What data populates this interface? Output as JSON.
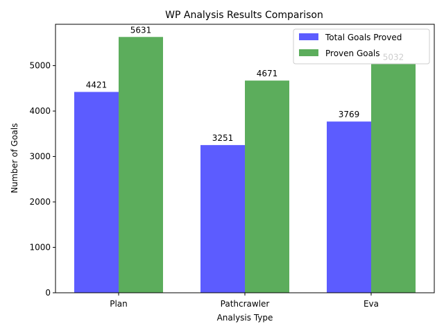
{
  "chart_data": {
    "type": "bar",
    "title": "WP Analysis Results Comparison",
    "xlabel": "Analysis Type",
    "ylabel": "Number of Goals",
    "categories": [
      "Plan",
      "Pathcrawler",
      "Eva"
    ],
    "series": [
      {
        "name": "Total Goals Proved",
        "color": "#3333ff",
        "values": [
          4421,
          3251,
          3769
        ]
      },
      {
        "name": "Proven Goals",
        "color": "#339933",
        "values": [
          5631,
          4671,
          5032
        ]
      }
    ],
    "yticks": [
      0,
      1000,
      2000,
      3000,
      4000,
      5000
    ],
    "ylim": [
      0,
      5910
    ],
    "grid": false,
    "legend_position": "top-right"
  }
}
